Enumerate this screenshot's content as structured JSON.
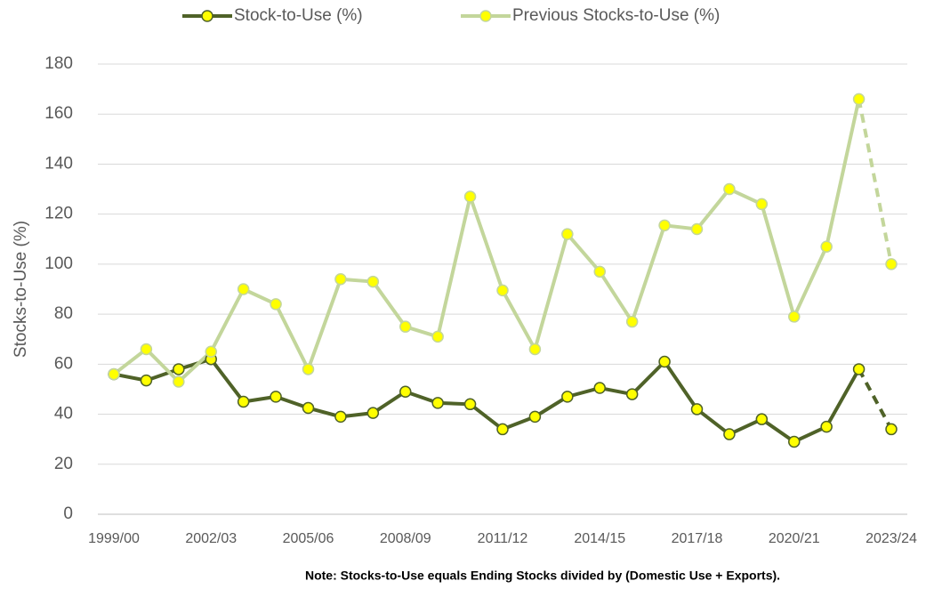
{
  "chart_data": {
    "type": "line",
    "y_label": "Stocks-to-Use (%)",
    "note": "Note: Stocks-to-Use equals Ending Stocks divided by (Domestic Use + Exports).",
    "categories": [
      "1999/00",
      null,
      null,
      "2002/03",
      null,
      null,
      "2005/06",
      null,
      null,
      "2008/09",
      null,
      null,
      "2011/12",
      null,
      null,
      "2014/15",
      null,
      null,
      "2017/18",
      null,
      null,
      "2020/21",
      null,
      null,
      "2023/24"
    ],
    "series": [
      {
        "name": "Stock-to-Use (%)",
        "color": "#4f6228",
        "marker_fill": "#ffff00",
        "values": [
          56,
          53.5,
          58,
          62,
          45,
          47,
          42.5,
          39,
          40.5,
          49,
          44.5,
          44,
          34,
          39,
          47,
          50.5,
          48,
          61,
          42,
          32,
          38,
          29,
          35,
          58,
          34
        ]
      },
      {
        "name": "Previous Stocks-to-Use (%)",
        "color": "#c3d69b",
        "marker_fill": "#ffff00",
        "values": [
          56,
          66,
          53,
          65,
          90,
          84,
          58,
          94,
          93,
          75,
          71,
          127,
          89.5,
          66,
          112,
          97,
          77,
          115.5,
          114,
          130,
          124,
          79,
          107,
          166,
          100
        ]
      }
    ],
    "dashed_from": 23,
    "ylim": [
      0,
      180
    ],
    "yticks": [
      0,
      20,
      40,
      60,
      80,
      100,
      120,
      140,
      160,
      180
    ],
    "grid": true,
    "legend": "top"
  }
}
